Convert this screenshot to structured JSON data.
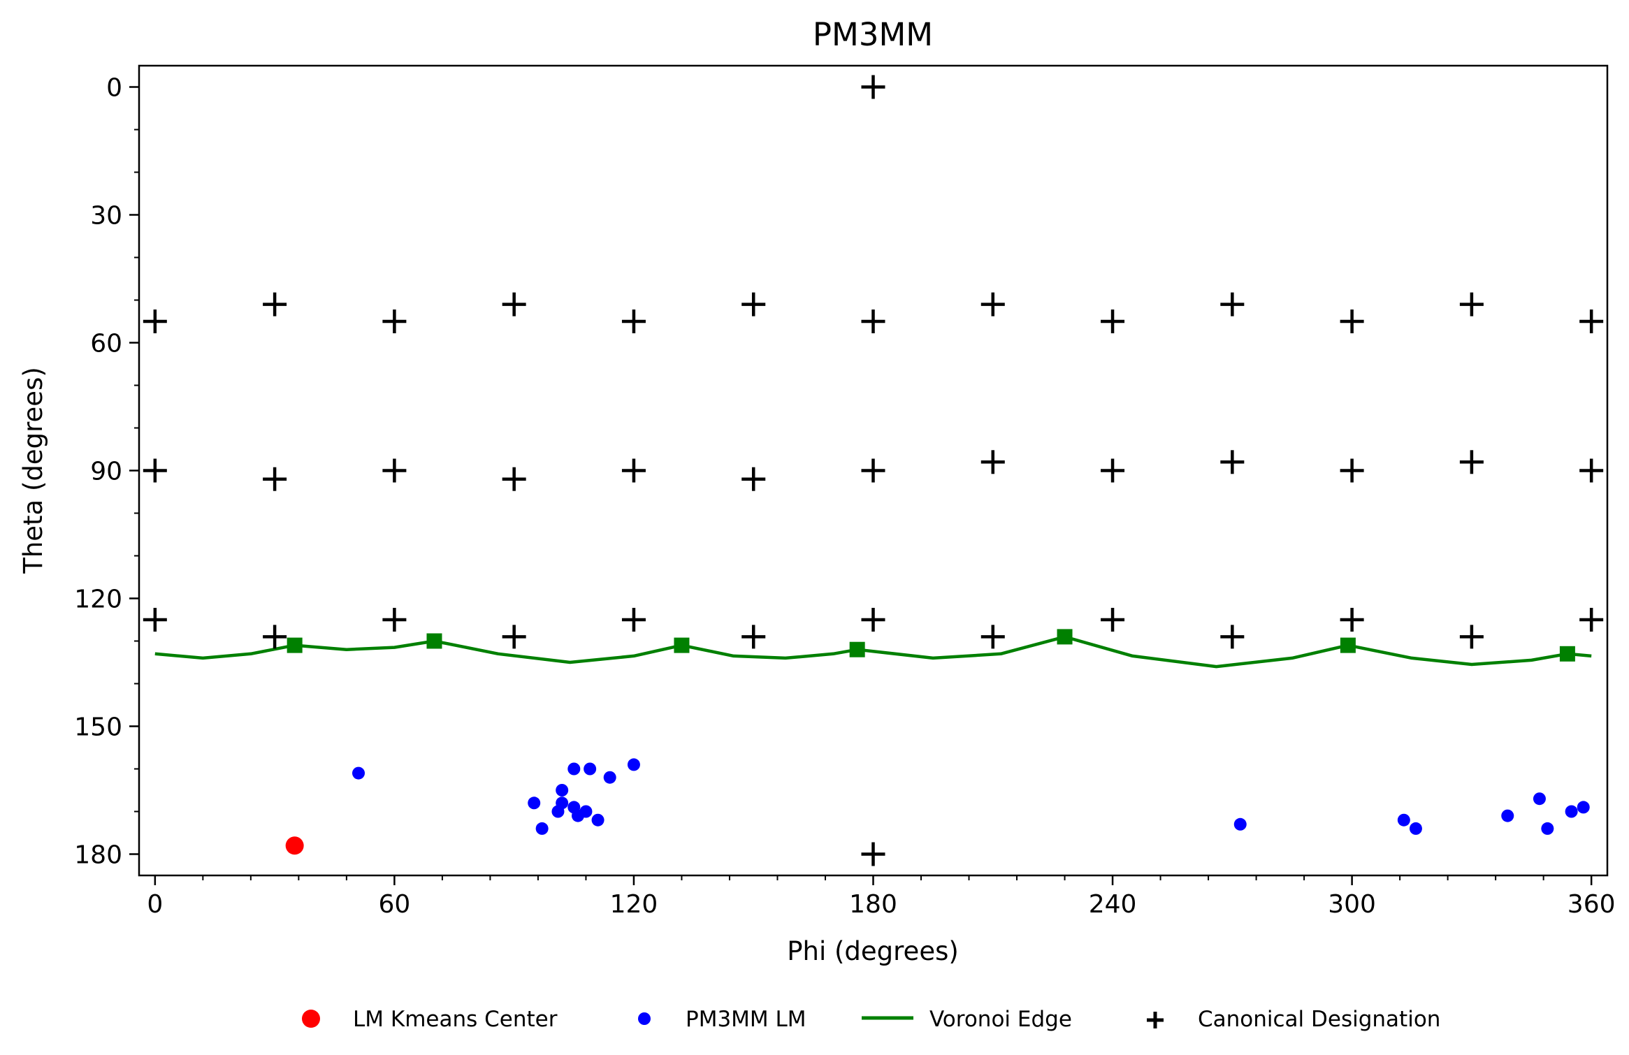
{
  "chart_data": {
    "type": "scatter",
    "title": "PM3MM",
    "xlabel": "Phi (degrees)",
    "ylabel": "Theta (degrees)",
    "xlim": [
      -4,
      364
    ],
    "ylim": [
      185,
      -5
    ],
    "y_inverted": true,
    "xticks": [
      0,
      60,
      120,
      180,
      240,
      300,
      360
    ],
    "yticks": [
      0,
      30,
      60,
      90,
      120,
      150,
      180
    ],
    "x_minor_step": 12,
    "y_minor_step": 10,
    "grid": false,
    "legend_position": "bottom",
    "series": [
      {
        "name": "LM Kmeans Center",
        "kind": "point",
        "color": "#ff0000",
        "points": [
          [
            35,
            178
          ]
        ]
      },
      {
        "name": "PM3MM LM",
        "kind": "point",
        "color": "#0000ff",
        "points": [
          [
            51,
            161
          ],
          [
            95,
            168
          ],
          [
            97,
            174
          ],
          [
            101,
            170
          ],
          [
            102,
            168
          ],
          [
            102,
            165
          ],
          [
            105,
            169
          ],
          [
            105,
            160
          ],
          [
            106,
            171
          ],
          [
            108,
            170
          ],
          [
            109,
            160
          ],
          [
            111,
            172
          ],
          [
            114,
            162
          ],
          [
            120,
            159
          ],
          [
            272,
            173
          ],
          [
            313,
            172
          ],
          [
            316,
            174
          ],
          [
            339,
            171
          ],
          [
            347,
            167
          ],
          [
            349,
            174
          ],
          [
            355,
            170
          ],
          [
            358,
            169
          ]
        ]
      },
      {
        "name": "Voronoi Edge",
        "kind": "line",
        "color": "#008000",
        "vertices": [
          [
            35,
            131
          ],
          [
            70,
            130
          ],
          [
            132,
            131
          ],
          [
            176,
            132
          ],
          [
            228,
            129
          ],
          [
            299,
            131
          ],
          [
            354,
            133
          ]
        ],
        "curve": [
          [
            0,
            133
          ],
          [
            12,
            134
          ],
          [
            24,
            133
          ],
          [
            35,
            131
          ],
          [
            48,
            132
          ],
          [
            60,
            131.5
          ],
          [
            70,
            130
          ],
          [
            86,
            133
          ],
          [
            104,
            135
          ],
          [
            120,
            133.5
          ],
          [
            132,
            131
          ],
          [
            145,
            133.5
          ],
          [
            158,
            134
          ],
          [
            170,
            133
          ],
          [
            176,
            132
          ],
          [
            195,
            134
          ],
          [
            212,
            133
          ],
          [
            228,
            129
          ],
          [
            245,
            133.5
          ],
          [
            266,
            136
          ],
          [
            285,
            134
          ],
          [
            299,
            131
          ],
          [
            315,
            134
          ],
          [
            330,
            135.5
          ],
          [
            345,
            134.5
          ],
          [
            354,
            133
          ],
          [
            360,
            133.5
          ]
        ]
      },
      {
        "name": "Canonical Designation",
        "kind": "marker",
        "color": "#000000",
        "points": [
          [
            180,
            0
          ],
          [
            180,
            180
          ],
          [
            0,
            55
          ],
          [
            30,
            51
          ],
          [
            60,
            55
          ],
          [
            90,
            51
          ],
          [
            120,
            55
          ],
          [
            150,
            51
          ],
          [
            180,
            55
          ],
          [
            210,
            51
          ],
          [
            240,
            55
          ],
          [
            270,
            51
          ],
          [
            300,
            55
          ],
          [
            330,
            51
          ],
          [
            360,
            55
          ],
          [
            0,
            90
          ],
          [
            30,
            92
          ],
          [
            60,
            90
          ],
          [
            90,
            92
          ],
          [
            120,
            90
          ],
          [
            150,
            92
          ],
          [
            180,
            90
          ],
          [
            210,
            88
          ],
          [
            240,
            90
          ],
          [
            270,
            88
          ],
          [
            300,
            90
          ],
          [
            330,
            88
          ],
          [
            360,
            90
          ],
          [
            0,
            125
          ],
          [
            30,
            129
          ],
          [
            60,
            125
          ],
          [
            90,
            129
          ],
          [
            120,
            125
          ],
          [
            150,
            129
          ],
          [
            180,
            125
          ],
          [
            210,
            129
          ],
          [
            240,
            125
          ],
          [
            270,
            129
          ],
          [
            300,
            125
          ],
          [
            330,
            129
          ],
          [
            360,
            125
          ]
        ]
      }
    ]
  }
}
